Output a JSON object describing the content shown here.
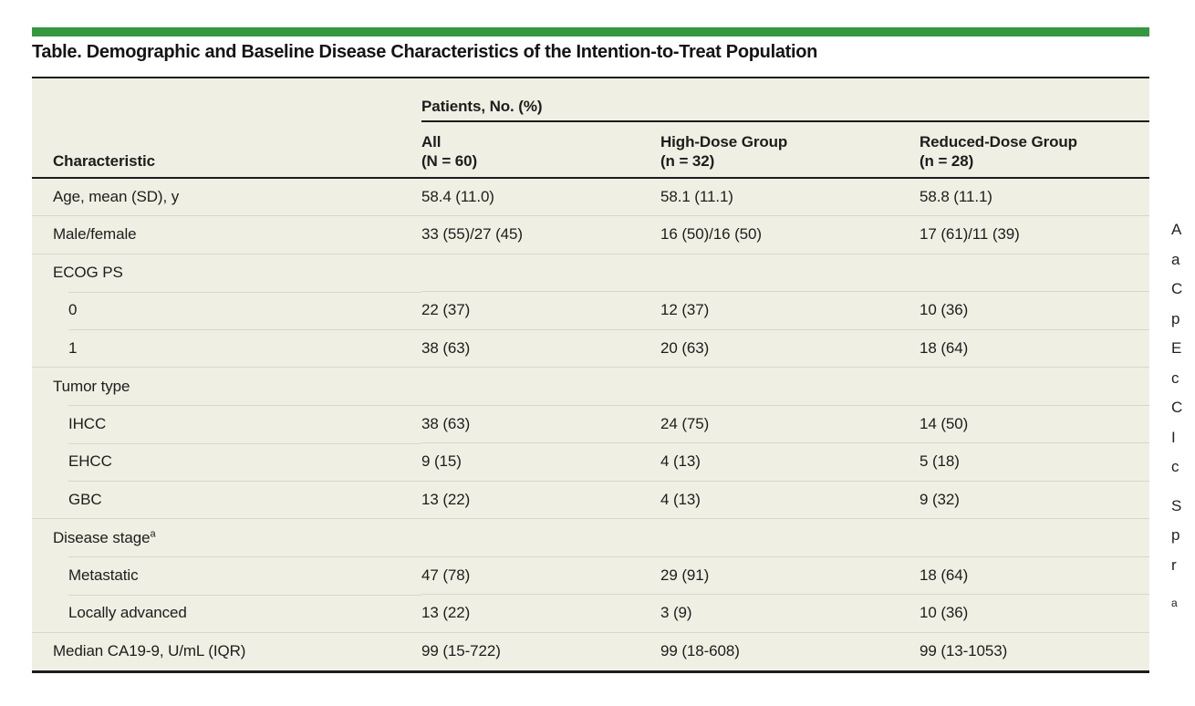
{
  "colors": {
    "accent_green": "#35973F",
    "table_background": "#F0EFE4",
    "rule_dark": "#1C1C1A",
    "rule_light": "#D8D7C9"
  },
  "table": {
    "title": "Table. Demographic and Baseline Disease Characteristics of the Intention-to-Treat Population",
    "spanner": "Patients, No. (%)",
    "col_headers": [
      {
        "label": "Characteristic"
      },
      {
        "line1": "All",
        "line2": "(N = 60)"
      },
      {
        "line1": "High-Dose Group",
        "line2": "(n = 32)"
      },
      {
        "line1": "Reduced-Dose Group",
        "line2": "(n = 28)"
      }
    ],
    "rows": [
      {
        "label": "Age, mean (SD), y",
        "indent": false,
        "divider": "none",
        "values": [
          "58.4 (11.0)",
          "58.1 (11.1)",
          "58.8 (11.1)"
        ]
      },
      {
        "label": "Male/female",
        "indent": false,
        "divider": "full",
        "values": [
          "33 (55)/27 (45)",
          "16 (50)/16 (50)",
          "17 (61)/11 (39)"
        ]
      },
      {
        "label": "ECOG PS",
        "indent": false,
        "divider": "full",
        "values": [
          "",
          "",
          ""
        ]
      },
      {
        "label": "0",
        "indent": true,
        "divider": "indent",
        "values": [
          "22 (37)",
          "12 (37)",
          "10 (36)"
        ]
      },
      {
        "label": "1",
        "indent": true,
        "divider": "indent",
        "values": [
          "38 (63)",
          "20 (63)",
          "18 (64)"
        ]
      },
      {
        "label": "Tumor type",
        "indent": false,
        "divider": "full",
        "values": [
          "",
          "",
          ""
        ]
      },
      {
        "label": "IHCC",
        "indent": true,
        "divider": "indent",
        "values": [
          "38 (63)",
          "24 (75)",
          "14 (50)"
        ]
      },
      {
        "label": "EHCC",
        "indent": true,
        "divider": "indent",
        "values": [
          "9 (15)",
          "4 (13)",
          "5 (18)"
        ]
      },
      {
        "label": "GBC",
        "indent": true,
        "divider": "indent",
        "values": [
          "13 (22)",
          "4 (13)",
          "9 (32)"
        ]
      },
      {
        "label": "Disease stage",
        "sup": "a",
        "indent": false,
        "divider": "full",
        "values": [
          "",
          "",
          ""
        ]
      },
      {
        "label": "Metastatic",
        "indent": true,
        "divider": "indent",
        "values": [
          "47 (78)",
          "29 (91)",
          "18 (64)"
        ]
      },
      {
        "label": "Locally advanced",
        "indent": true,
        "divider": "indent",
        "values": [
          "13 (22)",
          "3 (9)",
          "10 (36)"
        ]
      },
      {
        "label": "Median CA19-9, U/mL (IQR)",
        "indent": false,
        "divider": "full",
        "values": [
          "99 (15-722)",
          "99 (18-608)",
          "99 (13-1053)"
        ]
      }
    ]
  },
  "sidenote": {
    "lines": [
      {
        "t": "A"
      },
      {
        "t": "a"
      },
      {
        "t": "C"
      },
      {
        "t": "p"
      },
      {
        "t": "E"
      },
      {
        "t": "c"
      },
      {
        "t": "C"
      },
      {
        "t": "I"
      },
      {
        "t": "c"
      },
      {
        "t": "S",
        "gap": true
      },
      {
        "t": "p"
      },
      {
        "t": "r"
      },
      {
        "t": "a",
        "gap": true,
        "small": true
      }
    ]
  }
}
